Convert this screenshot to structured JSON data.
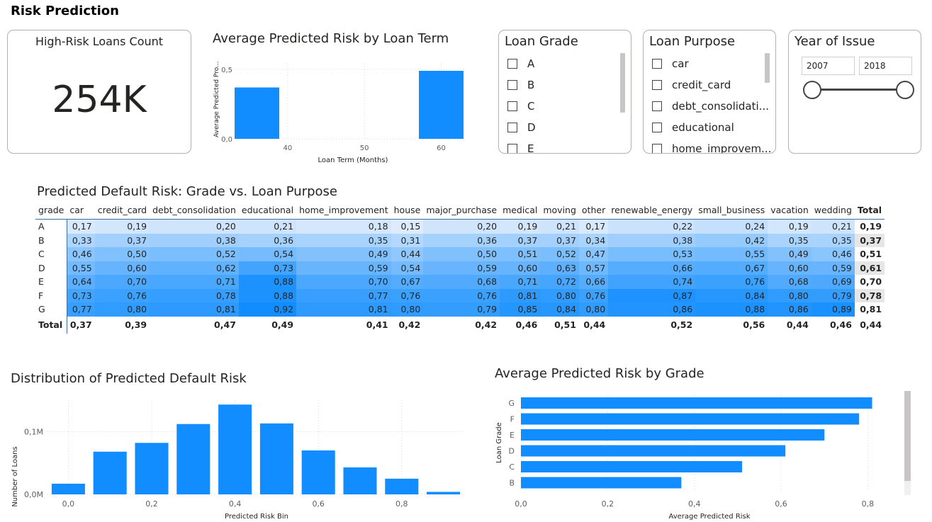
{
  "page_title": "Risk Prediction",
  "kpi": {
    "label": "High-Risk Loans Count",
    "value": "254K"
  },
  "term_chart": {
    "title": "Average Predicted Risk by Loan Term",
    "xlabel": "Loan Term (Months)",
    "ylabel": "Average Predicted Pro...",
    "x_ticks": [
      "40",
      "50",
      "60"
    ],
    "y_ticks": [
      "0,0",
      "0,5"
    ]
  },
  "grade_slicer": {
    "title": "Loan Grade",
    "items": [
      "A",
      "B",
      "C",
      "D",
      "E"
    ]
  },
  "purpose_slicer": {
    "title": "Loan Purpose",
    "items": [
      "car",
      "credit_card",
      "debt_consolidati...",
      "educational",
      "home_improvem..."
    ]
  },
  "year_slicer": {
    "title": "Year of Issue",
    "from": "2007",
    "to": "2018"
  },
  "matrix": {
    "title": "Predicted Default Risk: Grade vs. Loan Purpose",
    "corner": "grade",
    "columns": [
      "car",
      "credit_card",
      "debt_consolidation",
      "educational",
      "home_improvement",
      "house",
      "major_purchase",
      "medical",
      "moving",
      "other",
      "renewable_energy",
      "small_business",
      "vacation",
      "wedding"
    ],
    "total_label": "Total",
    "rows": [
      {
        "grade": "A",
        "values": [
          "0,17",
          "0,19",
          "0,20",
          "0,21",
          "0,18",
          "0,15",
          "0,20",
          "0,19",
          "0,21",
          "0,17",
          "0,22",
          "0,24",
          "0,19",
          "0,21"
        ],
        "total": "0,19"
      },
      {
        "grade": "B",
        "values": [
          "0,33",
          "0,37",
          "0,38",
          "0,36",
          "0,35",
          "0,31",
          "0,36",
          "0,37",
          "0,37",
          "0,34",
          "0,38",
          "0,42",
          "0,35",
          "0,35"
        ],
        "total": "0,37"
      },
      {
        "grade": "C",
        "values": [
          "0,46",
          "0,50",
          "0,52",
          "0,54",
          "0,49",
          "0,44",
          "0,50",
          "0,51",
          "0,52",
          "0,47",
          "0,53",
          "0,55",
          "0,49",
          "0,46"
        ],
        "total": "0,51"
      },
      {
        "grade": "D",
        "values": [
          "0,55",
          "0,60",
          "0,62",
          "0,73",
          "0,59",
          "0,54",
          "0,59",
          "0,60",
          "0,63",
          "0,57",
          "0,66",
          "0,67",
          "0,60",
          "0,59"
        ],
        "total": "0,61"
      },
      {
        "grade": "E",
        "values": [
          "0,64",
          "0,70",
          "0,71",
          "0,88",
          "0,70",
          "0,67",
          "0,68",
          "0,71",
          "0,72",
          "0,66",
          "0,74",
          "0,76",
          "0,68",
          "0,69"
        ],
        "total": "0,70"
      },
      {
        "grade": "F",
        "values": [
          "0,73",
          "0,76",
          "0,78",
          "0,88",
          "0,77",
          "0,76",
          "0,76",
          "0,81",
          "0,80",
          "0,76",
          "0,87",
          "0,84",
          "0,80",
          "0,79"
        ],
        "total": "0,78"
      },
      {
        "grade": "G",
        "values": [
          "0,77",
          "0,80",
          "0,81",
          "0,92",
          "0,81",
          "0,80",
          "0,79",
          "0,85",
          "0,84",
          "0,80",
          "0,86",
          "0,88",
          "0,86",
          "0,89"
        ],
        "total": "0,81"
      }
    ],
    "totals": [
      "0,37",
      "0,39",
      "0,47",
      "0,49",
      "0,41",
      "0,42",
      "0,42",
      "0,46",
      "0,51",
      "0,44",
      "0,52",
      "0,56",
      "0,44",
      "0,46"
    ],
    "grand_total": "0,44"
  },
  "dist_chart": {
    "title": "Distribution of Predicted Default Risk",
    "xlabel": "Predicted Risk Bin",
    "ylabel": "Number of Loans",
    "y_ticks": [
      "0,0M",
      "0,1M"
    ],
    "x_ticks": [
      "0,0",
      "0,2",
      "0,4",
      "0,6",
      "0,8"
    ]
  },
  "grade_chart": {
    "title": "Average Predicted Risk by Grade",
    "xlabel": "Average Predicted Risk",
    "ylabel": "Loan Grade",
    "x_ticks": [
      "0,0",
      "0,2",
      "0,4",
      "0,6",
      "0,8"
    ]
  },
  "colors": {
    "accent": "#118dff",
    "total_cell_bg": "#e6e6e6"
  },
  "chart_data": [
    {
      "type": "bar",
      "x": [
        36,
        60
      ],
      "values": [
        0.37,
        0.49
      ],
      "title": "Average Predicted Risk by Loan Term",
      "xlabel": "Loan Term (Months)",
      "ylabel": "Average Predicted Pro...",
      "xlim": [
        33,
        63
      ],
      "ylim": [
        0,
        0.5
      ],
      "grid": true
    },
    {
      "type": "bar",
      "x": [
        0.0,
        0.1,
        0.2,
        0.3,
        0.4,
        0.5,
        0.6,
        0.7,
        0.8,
        0.9
      ],
      "values": [
        0.017,
        0.068,
        0.082,
        0.112,
        0.143,
        0.113,
        0.07,
        0.043,
        0.025,
        0.004
      ],
      "title": "Distribution of Predicted Default Risk",
      "xlabel": "Predicted Risk Bin",
      "ylabel": "Number of Loans",
      "value_unit": "M",
      "xlim": [
        -0.05,
        0.95
      ],
      "ylim": [
        0,
        0.15
      ],
      "grid": true
    },
    {
      "type": "bar",
      "orientation": "horizontal",
      "categories": [
        "G",
        "F",
        "E",
        "D",
        "C",
        "B"
      ],
      "values": [
        0.81,
        0.78,
        0.7,
        0.61,
        0.51,
        0.37
      ],
      "title": "Average Predicted Risk by Grade",
      "xlabel": "Average Predicted Risk",
      "ylabel": "Loan Grade",
      "xlim": [
        0,
        0.85
      ],
      "grid": true
    }
  ]
}
